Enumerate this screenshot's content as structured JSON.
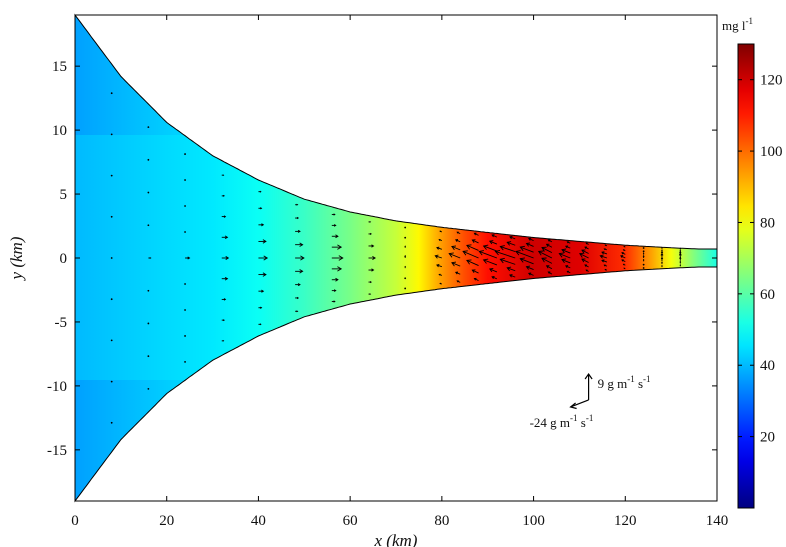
{
  "chart_data": {
    "type": "heatmap",
    "title": "",
    "xlabel": "x (km)",
    "ylabel": "y (km)",
    "xlim": [
      0,
      140
    ],
    "ylim": [
      -19,
      19
    ],
    "x_ticks": [
      0,
      20,
      40,
      60,
      80,
      100,
      120,
      140
    ],
    "y_ticks": [
      -15,
      -10,
      -5,
      0,
      5,
      10,
      15
    ],
    "domain_half_width": {
      "x": [
        0,
        10,
        20,
        30,
        40,
        50,
        60,
        70,
        80,
        90,
        100,
        110,
        120,
        130,
        136,
        140
      ],
      "y": [
        19,
        14.2,
        10.6,
        8.0,
        6.1,
        4.6,
        3.6,
        2.9,
        2.4,
        2.0,
        1.6,
        1.3,
        1.0,
        0.8,
        0.7,
        0.7
      ]
    },
    "concentration": {
      "x": [
        0,
        10,
        20,
        30,
        40,
        50,
        60,
        70,
        75,
        80,
        85,
        90,
        100,
        110,
        120,
        125,
        130,
        135,
        140
      ],
      "value": [
        40,
        42,
        44,
        46,
        50,
        56,
        64,
        74,
        82,
        94,
        104,
        112,
        120,
        118,
        108,
        95,
        80,
        65,
        52
      ],
      "edge_offset": [
        -2,
        -3,
        -3,
        -2,
        0,
        0,
        0,
        0,
        0,
        0,
        0,
        0,
        0,
        0,
        0,
        0,
        0,
        0,
        0
      ]
    },
    "colorbar": {
      "label": "mg l",
      "label_sup": "-1",
      "range": [
        0,
        130
      ],
      "ticks": [
        20,
        40,
        60,
        80,
        100,
        120
      ],
      "colormap": "jet"
    },
    "vectors": {
      "columns_x": [
        8,
        16,
        24,
        32,
        40,
        48,
        56,
        64,
        72,
        80,
        84,
        88,
        92,
        96,
        100,
        104,
        108,
        112,
        116,
        120,
        124,
        128,
        132
      ],
      "centerline_u": [
        0.5,
        1,
        2,
        3,
        4,
        4,
        5,
        3,
        0,
        -3,
        -5,
        -7,
        -8,
        -9,
        -8,
        -6,
        -5,
        -4,
        -3,
        -2,
        0,
        0,
        0
      ],
      "centerline_v": [
        0,
        0,
        0,
        0,
        0,
        0,
        0,
        0,
        1,
        1,
        2,
        3,
        3,
        3,
        3,
        3,
        2,
        2,
        1,
        1,
        1,
        2,
        2
      ]
    },
    "reference_arrows": {
      "origin": [
        112,
        -11.1
      ],
      "u": -24,
      "v": 9,
      "u_label": "-24  g m",
      "u_label_sup1": "-1",
      "u_label_mid": " s",
      "u_label_sup2": "-1",
      "v_label": "9  g m",
      "v_label_sup1": "-1",
      "v_label_mid": " s",
      "v_label_sup2": "-1"
    }
  }
}
